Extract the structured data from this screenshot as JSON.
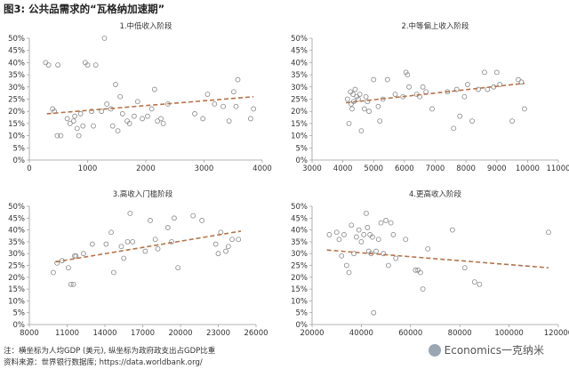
{
  "figure": {
    "title": "图3: 公共品需求的“瓦格纳加速期”",
    "note_line1": "注：横坐标为人均GDP (美元), 纵坐标为政府政支出占GDP比重",
    "note_line2": "资料来源：世界银行数据库; https://data.worldbank.org/",
    "watermark": "Economics一克纳米"
  },
  "colors": {
    "point_stroke": "#8a8a8a",
    "trend": "#b5734a",
    "axis": "#9a9a9a",
    "text": "#333333"
  },
  "chart_data": [
    {
      "type": "scatter",
      "title": "1.中低收入阶段",
      "xlim": [
        0,
        4000
      ],
      "ylim": [
        0,
        0.5
      ],
      "xticks": [
        0,
        1000,
        2000,
        3000,
        4000
      ],
      "xtick_labels": [
        "0",
        "1000",
        "2000",
        "3000",
        "4000"
      ],
      "yticks": [
        0,
        0.05,
        0.1,
        0.15,
        0.2,
        0.25,
        0.3,
        0.35,
        0.4,
        0.45,
        0.5
      ],
      "ytick_labels": [
        "0%",
        "5%",
        "10%",
        "15%",
        "20%",
        "25%",
        "30%",
        "35%",
        "40%",
        "45%",
        "50%"
      ],
      "points": [
        [
          280,
          0.4
        ],
        [
          330,
          0.39
        ],
        [
          490,
          0.39
        ],
        [
          400,
          0.21
        ],
        [
          430,
          0.2
        ],
        [
          480,
          0.1
        ],
        [
          540,
          0.1
        ],
        [
          650,
          0.17
        ],
        [
          700,
          0.15
        ],
        [
          760,
          0.16
        ],
        [
          780,
          0.18
        ],
        [
          820,
          0.13
        ],
        [
          850,
          0.1
        ],
        [
          880,
          0.19
        ],
        [
          920,
          0.14
        ],
        [
          960,
          0.4
        ],
        [
          1000,
          0.39
        ],
        [
          1070,
          0.2
        ],
        [
          1100,
          0.14
        ],
        [
          1140,
          0.39
        ],
        [
          1240,
          0.2
        ],
        [
          1290,
          0.5
        ],
        [
          1330,
          0.23
        ],
        [
          1400,
          0.21
        ],
        [
          1430,
          0.14
        ],
        [
          1480,
          0.31
        ],
        [
          1520,
          0.12
        ],
        [
          1560,
          0.26
        ],
        [
          1600,
          0.19
        ],
        [
          1680,
          0.16
        ],
        [
          1720,
          0.15
        ],
        [
          1800,
          0.18
        ],
        [
          1860,
          0.24
        ],
        [
          1940,
          0.17
        ],
        [
          2030,
          0.18
        ],
        [
          2100,
          0.21
        ],
        [
          2150,
          0.29
        ],
        [
          2200,
          0.16
        ],
        [
          2260,
          0.17
        ],
        [
          2300,
          0.15
        ],
        [
          2380,
          0.23
        ],
        [
          2840,
          0.19
        ],
        [
          2980,
          0.17
        ],
        [
          3060,
          0.27
        ],
        [
          3180,
          0.23
        ],
        [
          3330,
          0.22
        ],
        [
          3430,
          0.16
        ],
        [
          3510,
          0.28
        ],
        [
          3550,
          0.22
        ],
        [
          3580,
          0.33
        ],
        [
          3800,
          0.17
        ],
        [
          3850,
          0.21
        ]
      ],
      "trend": [
        [
          300,
          0.19
        ],
        [
          3850,
          0.26
        ]
      ]
    },
    {
      "type": "scatter",
      "title": "2.中等偏上收入阶段",
      "xlim": [
        3000,
        11000
      ],
      "ylim": [
        0,
        0.5
      ],
      "xticks": [
        3000,
        4000,
        5000,
        6000,
        7000,
        8000,
        9000,
        10000,
        11000
      ],
      "xtick_labels": [
        "3000",
        "4000",
        "5000",
        "6000",
        "7000",
        "8000",
        "9000",
        "10000",
        "11000"
      ],
      "yticks": [
        0,
        0.05,
        0.1,
        0.15,
        0.2,
        0.25,
        0.3,
        0.35,
        0.4,
        0.45,
        0.5
      ],
      "ytick_labels": [
        "0%",
        "5%",
        "10%",
        "15%",
        "20%",
        "25%",
        "30%",
        "35%",
        "40%",
        "45%",
        "50%"
      ],
      "points": [
        [
          4150,
          0.25
        ],
        [
          4200,
          0.15
        ],
        [
          4250,
          0.28
        ],
        [
          4270,
          0.23
        ],
        [
          4300,
          0.21
        ],
        [
          4330,
          0.27
        ],
        [
          4350,
          0.24
        ],
        [
          4400,
          0.29
        ],
        [
          4450,
          0.26
        ],
        [
          4500,
          0.25
        ],
        [
          4550,
          0.27
        ],
        [
          4600,
          0.12
        ],
        [
          4700,
          0.21
        ],
        [
          4750,
          0.26
        ],
        [
          4800,
          0.24
        ],
        [
          4850,
          0.2
        ],
        [
          5000,
          0.33
        ],
        [
          5150,
          0.22
        ],
        [
          5200,
          0.16
        ],
        [
          5300,
          0.25
        ],
        [
          5450,
          0.33
        ],
        [
          5700,
          0.27
        ],
        [
          5950,
          0.26
        ],
        [
          6050,
          0.36
        ],
        [
          6100,
          0.35
        ],
        [
          6150,
          0.3
        ],
        [
          6400,
          0.27
        ],
        [
          6500,
          0.26
        ],
        [
          6600,
          0.3
        ],
        [
          6700,
          0.28
        ],
        [
          6900,
          0.21
        ],
        [
          7400,
          0.28
        ],
        [
          7600,
          0.13
        ],
        [
          7700,
          0.29
        ],
        [
          7800,
          0.18
        ],
        [
          7950,
          0.26
        ],
        [
          8050,
          0.31
        ],
        [
          8200,
          0.16
        ],
        [
          8400,
          0.29
        ],
        [
          8600,
          0.36
        ],
        [
          8700,
          0.29
        ],
        [
          8900,
          0.3
        ],
        [
          9000,
          0.36
        ],
        [
          9100,
          0.31
        ],
        [
          9500,
          0.16
        ],
        [
          9700,
          0.33
        ],
        [
          9800,
          0.32
        ],
        [
          9900,
          0.21
        ]
      ],
      "trend": [
        [
          4100,
          0.235
        ],
        [
          9900,
          0.315
        ]
      ]
    },
    {
      "type": "scatter",
      "title": "3.高收入门槛阶段",
      "xlim": [
        8000,
        26000
      ],
      "ylim": [
        0,
        0.5
      ],
      "xticks": [
        8000,
        11000,
        14000,
        17000,
        20000,
        23000,
        26000
      ],
      "xtick_labels": [
        "8000",
        "11000",
        "14000",
        "17000",
        "20000",
        "23000",
        "26000"
      ],
      "yticks": [
        0,
        0.05,
        0.1,
        0.15,
        0.2,
        0.25,
        0.3,
        0.35,
        0.4,
        0.45,
        0.5
      ],
      "ytick_labels": [
        "0%",
        "5%",
        "10%",
        "15%",
        "20%",
        "25%",
        "30%",
        "35%",
        "40%",
        "45%",
        "50%"
      ],
      "points": [
        [
          9900,
          0.22
        ],
        [
          10200,
          0.26
        ],
        [
          10600,
          0.27
        ],
        [
          11100,
          0.24
        ],
        [
          11300,
          0.17
        ],
        [
          11500,
          0.17
        ],
        [
          11600,
          0.29
        ],
        [
          11700,
          0.29
        ],
        [
          12300,
          0.3
        ],
        [
          13000,
          0.34
        ],
        [
          14100,
          0.34
        ],
        [
          14500,
          0.39
        ],
        [
          14700,
          0.22
        ],
        [
          15300,
          0.33
        ],
        [
          15500,
          0.28
        ],
        [
          15800,
          0.35
        ],
        [
          16000,
          0.47
        ],
        [
          16200,
          0.35
        ],
        [
          17200,
          0.31
        ],
        [
          17600,
          0.44
        ],
        [
          18000,
          0.36
        ],
        [
          18200,
          0.32
        ],
        [
          19000,
          0.41
        ],
        [
          19300,
          0.35
        ],
        [
          19500,
          0.45
        ],
        [
          19800,
          0.24
        ],
        [
          21000,
          0.46
        ],
        [
          21700,
          0.44
        ],
        [
          22800,
          0.34
        ],
        [
          23000,
          0.3
        ],
        [
          23200,
          0.39
        ],
        [
          23600,
          0.31
        ],
        [
          23800,
          0.33
        ],
        [
          24100,
          0.36
        ],
        [
          24600,
          0.36
        ]
      ],
      "trend": [
        [
          10100,
          0.265
        ],
        [
          24800,
          0.395
        ]
      ]
    },
    {
      "type": "scatter",
      "title": "4.更高收入阶段",
      "xlim": [
        20000,
        120000
      ],
      "ylim": [
        0,
        0.5
      ],
      "xticks": [
        20000,
        40000,
        60000,
        80000,
        100000,
        120000
      ],
      "xtick_labels": [
        "20000",
        "40000",
        "60000",
        "80000",
        "100000",
        "120000"
      ],
      "yticks": [
        0,
        0.05,
        0.1,
        0.15,
        0.2,
        0.25,
        0.3,
        0.35,
        0.4,
        0.45,
        0.5
      ],
      "ytick_labels": [
        "0%",
        "5%",
        "10%",
        "15%",
        "20%",
        "25%",
        "30%",
        "35%",
        "40%",
        "45%",
        "50%"
      ],
      "points": [
        [
          27000,
          0.38
        ],
        [
          30000,
          0.39
        ],
        [
          31000,
          0.36
        ],
        [
          32000,
          0.29
        ],
        [
          33000,
          0.38
        ],
        [
          34000,
          0.25
        ],
        [
          35000,
          0.22
        ],
        [
          36000,
          0.42
        ],
        [
          37000,
          0.3
        ],
        [
          38000,
          0.37
        ],
        [
          39000,
          0.4
        ],
        [
          40000,
          0.35
        ],
        [
          41000,
          0.38
        ],
        [
          42000,
          0.47
        ],
        [
          42500,
          0.41
        ],
        [
          43000,
          0.31
        ],
        [
          43500,
          0.38
        ],
        [
          44000,
          0.3
        ],
        [
          44500,
          0.37
        ],
        [
          45000,
          0.05
        ],
        [
          46000,
          0.31
        ],
        [
          47000,
          0.36
        ],
        [
          48000,
          0.43
        ],
        [
          49000,
          0.3
        ],
        [
          50000,
          0.44
        ],
        [
          51000,
          0.25
        ],
        [
          52000,
          0.43
        ],
        [
          53000,
          0.38
        ],
        [
          54000,
          0.28
        ],
        [
          58000,
          0.36
        ],
        [
          62000,
          0.23
        ],
        [
          63000,
          0.23
        ],
        [
          64000,
          0.22
        ],
        [
          65000,
          0.15
        ],
        [
          67000,
          0.32
        ],
        [
          77000,
          0.4
        ],
        [
          82000,
          0.24
        ],
        [
          86000,
          0.18
        ],
        [
          88000,
          0.17
        ],
        [
          116000,
          0.39
        ]
      ],
      "trend": [
        [
          26000,
          0.315
        ],
        [
          116000,
          0.24
        ]
      ]
    }
  ]
}
